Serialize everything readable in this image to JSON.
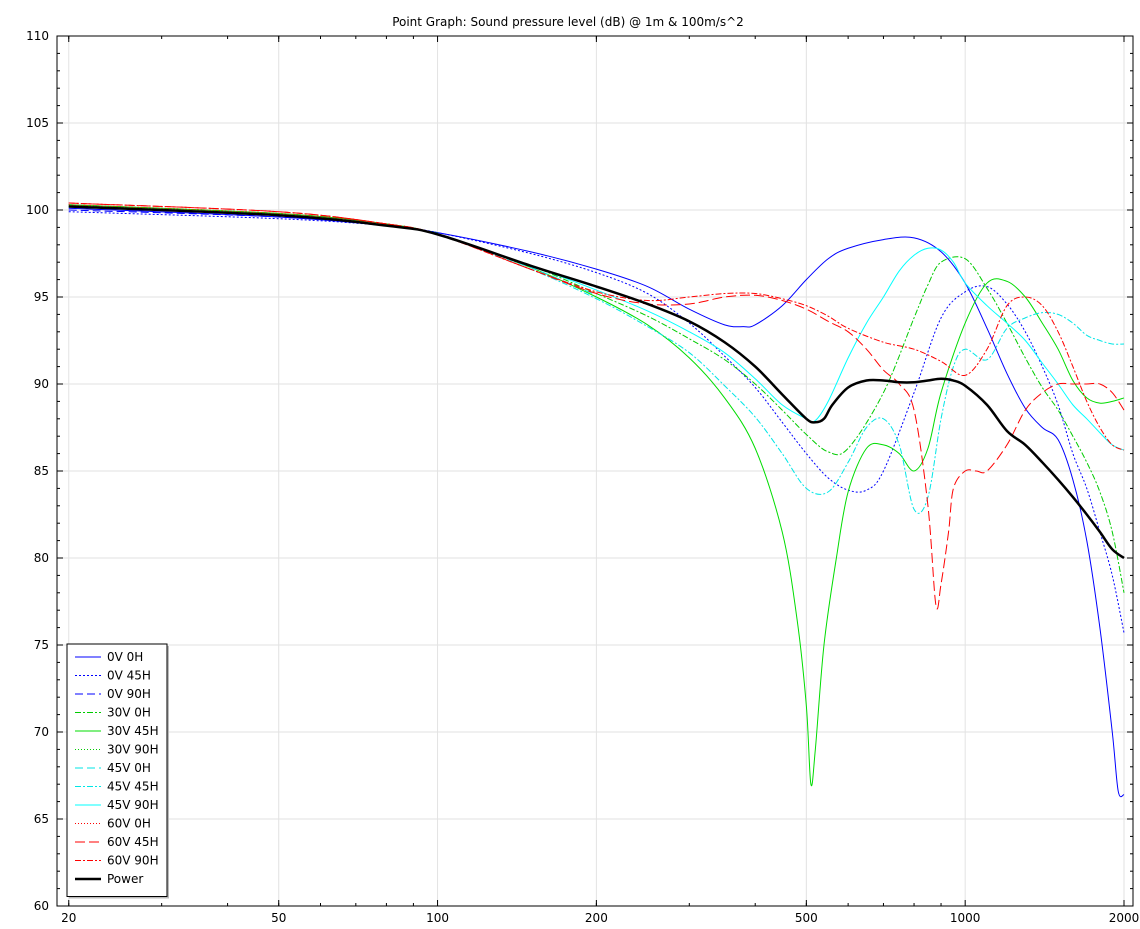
{
  "chart_data": {
    "type": "line",
    "title": "Point Graph: Sound pressure level (dB) @ 1m & 100m/s^2",
    "xlabel": "",
    "ylabel": "",
    "x_scale": "log",
    "xlim": [
      19,
      2080
    ],
    "ylim": [
      60,
      110
    ],
    "x_ticks": [
      20,
      50,
      100,
      200,
      500,
      1000,
      2000
    ],
    "y_ticks": [
      60,
      65,
      70,
      75,
      80,
      85,
      90,
      95,
      100,
      105,
      110
    ],
    "grid": true,
    "legend_position": "bottom-left",
    "series": [
      {
        "name": "0V 0H",
        "color": "#0000ff",
        "dash": "solid",
        "width": 1,
        "x": [
          20,
          50,
          80,
          100,
          150,
          200,
          250,
          300,
          350,
          380,
          400,
          450,
          500,
          550,
          600,
          700,
          800,
          900,
          1000,
          1100,
          1200,
          1300,
          1400,
          1500,
          1600,
          1700,
          1800,
          1900,
          1950,
          2000
        ],
        "y": [
          100.1,
          99.6,
          99.1,
          98.7,
          97.6,
          96.6,
          95.6,
          94.3,
          93.4,
          93.3,
          93.4,
          94.5,
          96.0,
          97.2,
          97.8,
          98.3,
          98.4,
          97.6,
          95.8,
          93.2,
          90.6,
          88.6,
          87.5,
          86.8,
          84.5,
          81.0,
          76.0,
          70.0,
          66.6,
          66.4
        ]
      },
      {
        "name": "0V 45H",
        "color": "#0000ff",
        "dash": "2,2",
        "width": 1,
        "x": [
          20,
          50,
          80,
          100,
          150,
          200,
          250,
          300,
          350,
          400,
          450,
          500,
          550,
          600,
          650,
          700,
          800,
          900,
          1000,
          1100,
          1200,
          1300,
          1400,
          1500,
          1600,
          1700,
          1800,
          1900,
          2000
        ],
        "y": [
          99.9,
          99.5,
          99.1,
          98.7,
          97.5,
          96.4,
          95.2,
          93.5,
          91.6,
          89.8,
          87.8,
          86.0,
          84.6,
          83.9,
          83.9,
          85.0,
          89.5,
          93.8,
          95.3,
          95.6,
          94.6,
          93.0,
          91.0,
          88.8,
          86.0,
          84.0,
          81.5,
          79.0,
          75.7
        ]
      },
      {
        "name": "0V 90H",
        "color": "#0000ff",
        "dash": "8,4",
        "width": 1,
        "x": [
          20,
          50,
          80,
          100
        ],
        "y": [
          100.0,
          99.6,
          99.1,
          98.7
        ]
      },
      {
        "name": "30V 0H",
        "color": "#00cc00",
        "dash": "6,2,2,2",
        "width": 1,
        "x": [
          20,
          50,
          80,
          100,
          150,
          200,
          250,
          300,
          350,
          400,
          450,
          500,
          550,
          600,
          700,
          800,
          850,
          900,
          1000,
          1100,
          1200,
          1300,
          1400,
          1500,
          1600,
          1700,
          1800,
          1900,
          2000
        ],
        "y": [
          100.3,
          99.8,
          99.2,
          98.6,
          96.8,
          95.2,
          93.9,
          92.6,
          91.4,
          90.0,
          88.5,
          87.1,
          86.1,
          86.3,
          89.5,
          93.8,
          95.7,
          97.0,
          97.2,
          95.5,
          93.5,
          91.5,
          89.8,
          88.5,
          87.0,
          85.5,
          83.8,
          81.5,
          78.0
        ]
      },
      {
        "name": "30V 45H",
        "color": "#00dd00",
        "dash": "solid",
        "width": 1,
        "x": [
          20,
          50,
          80,
          100,
          150,
          200,
          250,
          300,
          350,
          400,
          450,
          480,
          500,
          510,
          520,
          540,
          570,
          600,
          650,
          700,
          750,
          800,
          850,
          900,
          1000,
          1100,
          1200,
          1300,
          1400,
          1500,
          1600,
          1700,
          1800,
          1900,
          2000
        ],
        "y": [
          100.3,
          99.8,
          99.2,
          98.6,
          96.7,
          95.0,
          93.4,
          91.5,
          89.2,
          86.3,
          81.5,
          76.5,
          71.5,
          67.0,
          69.0,
          75.0,
          80.0,
          83.8,
          86.3,
          86.5,
          86.0,
          85.0,
          86.3,
          89.5,
          93.5,
          95.8,
          95.9,
          95.0,
          93.5,
          92.0,
          90.2,
          89.2,
          88.9,
          89.0,
          89.2
        ]
      },
      {
        "name": "30V 90H",
        "color": "#00cc00",
        "dash": "1,2",
        "width": 1,
        "x": [
          20,
          50,
          80,
          100
        ],
        "y": [
          100.2,
          99.7,
          99.1,
          98.7
        ]
      },
      {
        "name": "45V 0H",
        "color": "#00e6e6",
        "dash": "8,4",
        "width": 1,
        "x": [
          20,
          50,
          80,
          100,
          150,
          200
        ],
        "y": [
          100.2,
          99.7,
          99.1,
          98.6,
          96.7,
          95.1
        ]
      },
      {
        "name": "45V 45H",
        "color": "#00e6e6",
        "dash": "6,2,2,2",
        "width": 1,
        "x": [
          20,
          50,
          80,
          100,
          150,
          200,
          250,
          300,
          350,
          400,
          450,
          500,
          550,
          600,
          650,
          700,
          750,
          800,
          850,
          900,
          950,
          1000,
          1100,
          1200,
          1300,
          1400,
          1500,
          1600,
          1700,
          1800,
          1900,
          2000
        ],
        "y": [
          100.2,
          99.7,
          99.1,
          98.6,
          96.6,
          94.9,
          93.3,
          91.8,
          89.9,
          88.1,
          86.0,
          84.0,
          83.8,
          85.5,
          87.5,
          88.0,
          86.5,
          82.8,
          83.5,
          88.0,
          91.0,
          92.0,
          91.4,
          93.2,
          93.8,
          94.1,
          94.0,
          93.5,
          92.8,
          92.5,
          92.3,
          92.3
        ]
      },
      {
        "name": "45V 90H",
        "color": "#00ffff",
        "dash": "solid",
        "width": 1,
        "x": [
          20,
          50,
          80,
          100,
          150,
          200,
          250,
          300,
          350,
          400,
          450,
          500,
          520,
          550,
          600,
          650,
          700,
          750,
          800,
          850,
          900,
          950,
          1000,
          1100,
          1200,
          1300,
          1400,
          1500,
          1600,
          1700,
          1800,
          1900,
          2000
        ],
        "y": [
          100.2,
          99.7,
          99.1,
          98.6,
          96.8,
          95.4,
          94.2,
          93.0,
          91.8,
          90.3,
          88.8,
          88.0,
          87.9,
          89.0,
          91.5,
          93.5,
          95.0,
          96.5,
          97.4,
          97.8,
          97.7,
          97.0,
          95.8,
          94.5,
          93.5,
          92.5,
          91.2,
          90.0,
          88.8,
          88.0,
          87.2,
          86.5,
          86.2
        ]
      },
      {
        "name": "60V 0H",
        "color": "#ff0000",
        "dash": "1,2",
        "width": 1,
        "x": [
          20,
          50,
          80,
          100
        ],
        "y": [
          100.3,
          99.8,
          99.2,
          98.6
        ]
      },
      {
        "name": "60V 45H",
        "color": "#ff0000",
        "dash": "10,4",
        "width": 1,
        "x": [
          20,
          50,
          80,
          100,
          150,
          200,
          250,
          300,
          350,
          400,
          450,
          500,
          550,
          600,
          650,
          700,
          750,
          800,
          850,
          880,
          900,
          930,
          950,
          1000,
          1050,
          1100,
          1200,
          1300,
          1400,
          1500,
          1600,
          1700,
          1800,
          1900,
          2000
        ],
        "y": [
          100.4,
          99.9,
          99.2,
          98.6,
          96.6,
          95.2,
          94.6,
          94.6,
          95.0,
          95.1,
          94.8,
          94.3,
          93.6,
          93.0,
          92.0,
          90.8,
          90.0,
          88.5,
          83.0,
          77.3,
          78.5,
          81.5,
          84.0,
          85.0,
          85.0,
          85.0,
          86.5,
          88.5,
          89.5,
          90.0,
          90.0,
          90.0,
          90.0,
          89.5,
          88.5
        ]
      },
      {
        "name": "60V 90H",
        "color": "#ff0000",
        "dash": "6,2,2,2",
        "width": 1,
        "x": [
          20,
          50,
          80,
          100,
          150,
          200,
          250,
          300,
          350,
          400,
          450,
          500,
          550,
          600,
          700,
          800,
          900,
          1000,
          1100,
          1200,
          1300,
          1400,
          1500,
          1600,
          1700,
          1800,
          1900,
          2000
        ],
        "y": [
          100.4,
          99.9,
          99.2,
          98.6,
          96.6,
          95.3,
          94.8,
          95.0,
          95.2,
          95.2,
          94.9,
          94.5,
          93.9,
          93.2,
          92.4,
          92.0,
          91.3,
          90.5,
          92.0,
          94.5,
          95.0,
          94.5,
          93.0,
          91.0,
          89.0,
          87.5,
          86.5,
          86.2
        ]
      },
      {
        "name": "Power",
        "color": "#000000",
        "dash": "solid",
        "width": 2.5,
        "x": [
          20,
          50,
          80,
          100,
          150,
          200,
          250,
          300,
          350,
          400,
          450,
          500,
          520,
          540,
          560,
          600,
          650,
          700,
          750,
          800,
          850,
          900,
          950,
          1000,
          1100,
          1200,
          1300,
          1400,
          1500,
          1600,
          1700,
          1800,
          1900,
          2000
        ],
        "y": [
          100.2,
          99.7,
          99.1,
          98.6,
          96.8,
          95.6,
          94.6,
          93.6,
          92.4,
          91.0,
          89.4,
          88.0,
          87.8,
          88.0,
          88.8,
          89.8,
          90.2,
          90.2,
          90.1,
          90.1,
          90.2,
          90.3,
          90.2,
          89.9,
          88.8,
          87.3,
          86.5,
          85.5,
          84.5,
          83.5,
          82.5,
          81.5,
          80.5,
          80.0
        ]
      }
    ]
  }
}
